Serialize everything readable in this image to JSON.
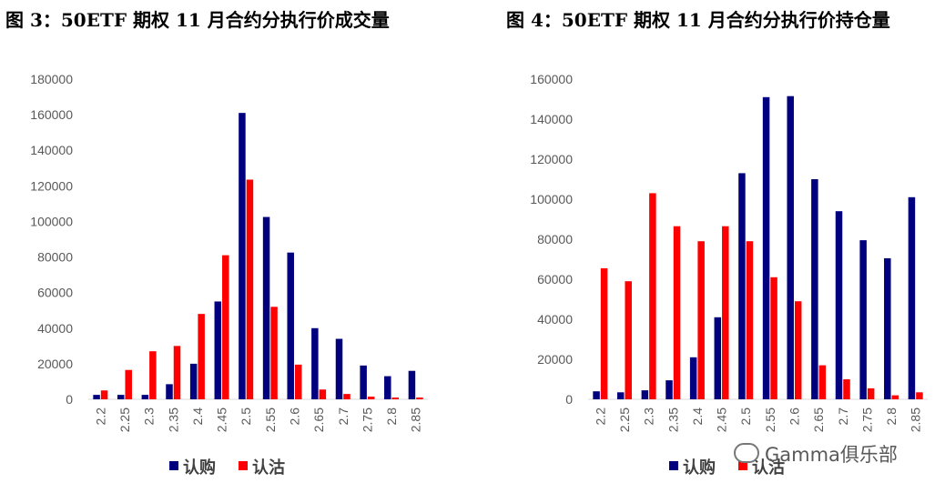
{
  "colors": {
    "call": "#00007F",
    "put": "#FF0000",
    "axis": "#D9D9D9",
    "tick": "#595959"
  },
  "watermark": {
    "text": "Gamma俱乐部",
    "icon": "wechat-icon"
  },
  "chart_data": [
    {
      "type": "bar",
      "title": "图 3：50ETF 期权 11 月合约分执行价成交量",
      "categories": [
        "2.2",
        "2.25",
        "2.3",
        "2.35",
        "2.4",
        "2.45",
        "2.5",
        "2.55",
        "2.6",
        "2.65",
        "2.7",
        "2.75",
        "2.8",
        "2.85"
      ],
      "series": [
        {
          "name": "认购",
          "color": "#00007F",
          "values": [
            2500,
            2500,
            2500,
            8500,
            20000,
            55000,
            161000,
            102500,
            82500,
            40000,
            34000,
            19000,
            13000,
            16000
          ]
        },
        {
          "name": "认沽",
          "color": "#FF0000",
          "values": [
            5000,
            16500,
            27000,
            30000,
            48000,
            81000,
            123500,
            52000,
            19500,
            5500,
            3000,
            1500,
            1000,
            1000
          ]
        }
      ],
      "ylim": [
        0,
        180000
      ],
      "yticks": [
        0,
        20000,
        40000,
        60000,
        80000,
        100000,
        120000,
        140000,
        160000,
        180000
      ],
      "legend": "bottom",
      "grid": false
    },
    {
      "type": "bar",
      "title": "图 4：50ETF 期权 11 月合约分执行价持仓量",
      "categories": [
        "2.2",
        "2.25",
        "2.3",
        "2.35",
        "2.4",
        "2.45",
        "2.5",
        "2.55",
        "2.6",
        "2.65",
        "2.7",
        "2.75",
        "2.8",
        "2.85"
      ],
      "series": [
        {
          "name": "认购",
          "color": "#00007F",
          "values": [
            4000,
            3500,
            4500,
            9500,
            21000,
            41000,
            113000,
            151000,
            151500,
            110000,
            94000,
            79500,
            70500,
            101000
          ]
        },
        {
          "name": "认沽",
          "color": "#FF0000",
          "values": [
            65500,
            59000,
            103000,
            86500,
            79000,
            86500,
            79000,
            61000,
            49000,
            17000,
            10000,
            5500,
            2000,
            3500
          ]
        }
      ],
      "ylim": [
        0,
        160000
      ],
      "yticks": [
        0,
        20000,
        40000,
        60000,
        80000,
        100000,
        120000,
        140000,
        160000
      ],
      "legend": "bottom",
      "grid": false
    }
  ]
}
